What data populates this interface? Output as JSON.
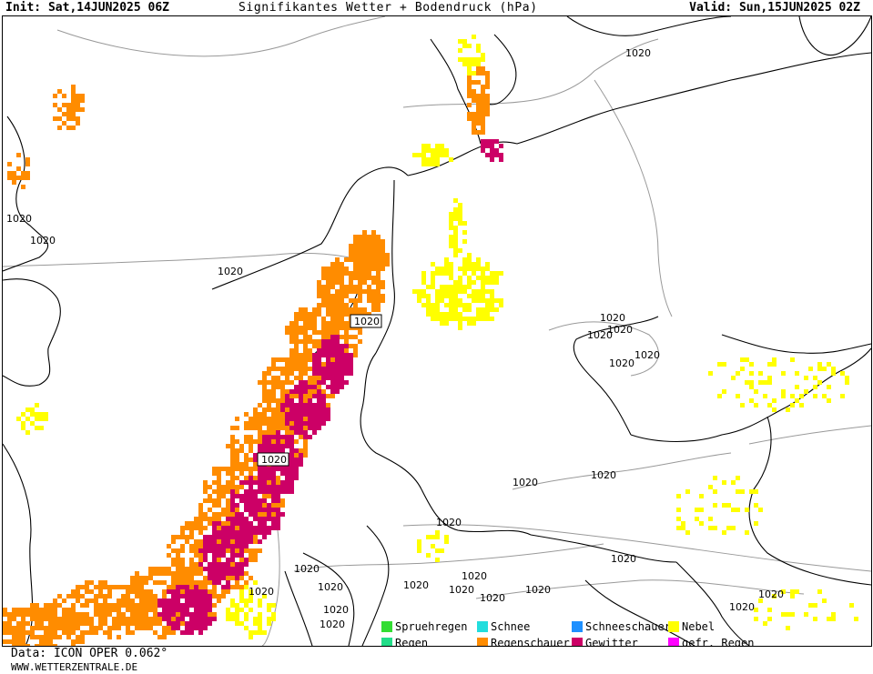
{
  "header": {
    "init": "Init: Sat,14JUN2025 06Z",
    "title": "Signifikantes Wetter + Bodendruck (hPa)",
    "valid": "Valid: Sun,15JUN2025 02Z"
  },
  "isobar_label": "1020",
  "legend": [
    {
      "label": "Spruehregen",
      "color": "#33dd33"
    },
    {
      "label": "Schnee",
      "color": "#22dddd"
    },
    {
      "label": "Schneeschauer",
      "color": "#1e90ff"
    },
    {
      "label": "Nebel",
      "color": "#ffff00"
    },
    {
      "label": "Regen",
      "color": "#22dd88"
    },
    {
      "label": "Regenschauer",
      "color": "#ff8c00"
    },
    {
      "label": "Gewitter",
      "color": "#cc0066"
    },
    {
      "label": "gefr. Regen",
      "color": "#ff00ff"
    }
  ],
  "footer": {
    "data": "Data: ICON OPER 0.062°",
    "url": "WWW.WETTERZENTRALE.DE"
  },
  "colors": {
    "fog": "#ffff00",
    "showers": "#ff8c00",
    "thunderstorm": "#cc0066",
    "border": "#000000",
    "isobar": "#999999"
  }
}
